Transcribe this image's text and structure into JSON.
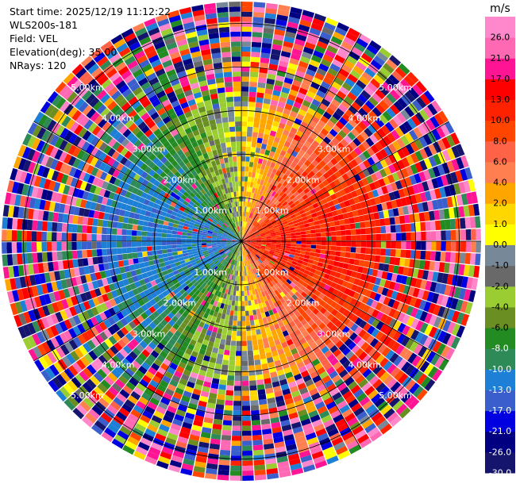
{
  "header": {
    "start_time": "Start time: 2025/12/19 11:12:22",
    "instrument": "WLS200s-181",
    "field": "Field: VEL",
    "elevation": "Elevation(deg): 35.00",
    "nrays": "NRays: 120"
  },
  "chart_data": {
    "type": "heatmap",
    "projection": "polar-ppi",
    "n_rays": 120,
    "field": "VEL",
    "elevation_deg": 35.0,
    "range_km": [
      0,
      5.5
    ],
    "range_rings_km": [
      1,
      2,
      3,
      4,
      5
    ],
    "range_ring_labels": [
      "1.00km",
      "2.00km",
      "3.00km",
      "4.00km",
      "5.00km"
    ],
    "spokes_deg": [
      0,
      30,
      60,
      90,
      120,
      150,
      180,
      210,
      240,
      270,
      300,
      330
    ],
    "colorbar": {
      "unit": "m/s",
      "levels": [
        -30.0,
        -26.0,
        -21.0,
        -17.0,
        -13.0,
        -10.0,
        -8.0,
        -6.0,
        -4.0,
        -2.0,
        -1.0,
        0.0,
        1.0,
        2.0,
        4.0,
        6.0,
        8.0,
        10.0,
        13.0,
        17.0,
        21.0,
        26.0
      ],
      "tick_labels": [
        "-30.0",
        "-26.0",
        "-21.0",
        "-17.0",
        "-13.0",
        "-10.0",
        "-8.0",
        "-6.0",
        "-4.0",
        "-2.0",
        "-1.0",
        "0.0",
        "1.0",
        "2.0",
        "4.0",
        "6.0",
        "8.0",
        "10.0",
        "13.0",
        "17.0",
        "21.0",
        "26.0"
      ],
      "colors": [
        "#15156e",
        "#000080",
        "#0000e0",
        "#3a5fcd",
        "#1e7fd6",
        "#2e8b57",
        "#228b22",
        "#6b8e23",
        "#9acd32",
        "#696969",
        "#778899",
        "#ffff00",
        "#ffd700",
        "#ffa500",
        "#ff7f50",
        "#ff6347",
        "#ff4500",
        "#ff2200",
        "#ff0000",
        "#ff1493",
        "#ff69b4",
        "#ff88cc"
      ]
    }
  },
  "colors": {
    "ring": "#000000",
    "ring_label": "#ffffff"
  }
}
